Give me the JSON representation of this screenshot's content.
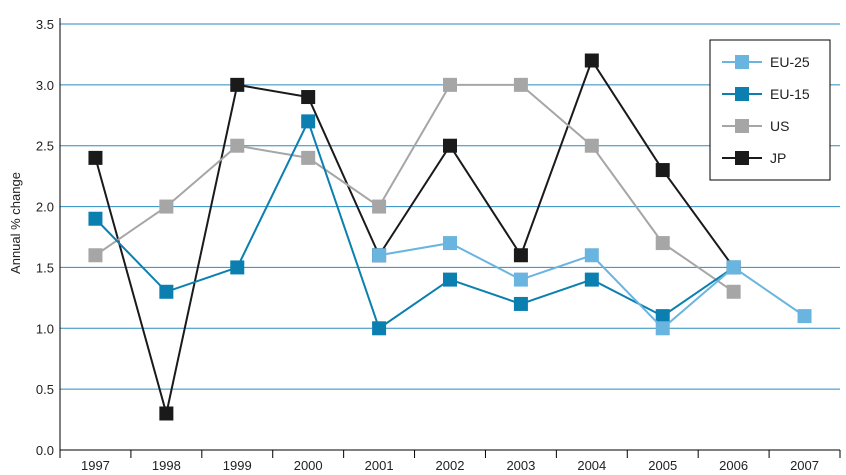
{
  "chart_data": {
    "type": "line",
    "title": "",
    "xlabel": "",
    "ylabel": "Annual % change",
    "categories": [
      "1997",
      "1998",
      "1999",
      "2000",
      "2001",
      "2002",
      "2003",
      "2004",
      "2005",
      "2006",
      "2007"
    ],
    "ylim": [
      0,
      3.5
    ],
    "yticks": [
      "0.0",
      "0.5",
      "1.0",
      "1.5",
      "2.0",
      "2.5",
      "3.0",
      "3.5"
    ],
    "grid": true,
    "legend_position": "top-right",
    "series": [
      {
        "name": "EU-25",
        "color": "#6ab4e0",
        "values": [
          null,
          null,
          null,
          null,
          1.6,
          1.7,
          1.4,
          1.6,
          1.0,
          1.5,
          1.1
        ]
      },
      {
        "name": "EU-15",
        "color": "#0a7fb0",
        "values": [
          1.9,
          1.3,
          1.5,
          2.7,
          1.0,
          1.4,
          1.2,
          1.4,
          1.1,
          1.5,
          null
        ]
      },
      {
        "name": "US",
        "color": "#a6a6a6",
        "values": [
          1.6,
          2.0,
          2.5,
          2.4,
          2.0,
          3.0,
          3.0,
          2.5,
          1.7,
          1.3,
          null
        ]
      },
      {
        "name": "JP",
        "color": "#1a1a1a",
        "values": [
          2.4,
          0.3,
          3.0,
          2.9,
          1.6,
          2.5,
          1.6,
          3.2,
          2.3,
          1.5,
          null
        ]
      }
    ],
    "gridline_color": "#2a8bc0",
    "axis_color": "#000000"
  }
}
